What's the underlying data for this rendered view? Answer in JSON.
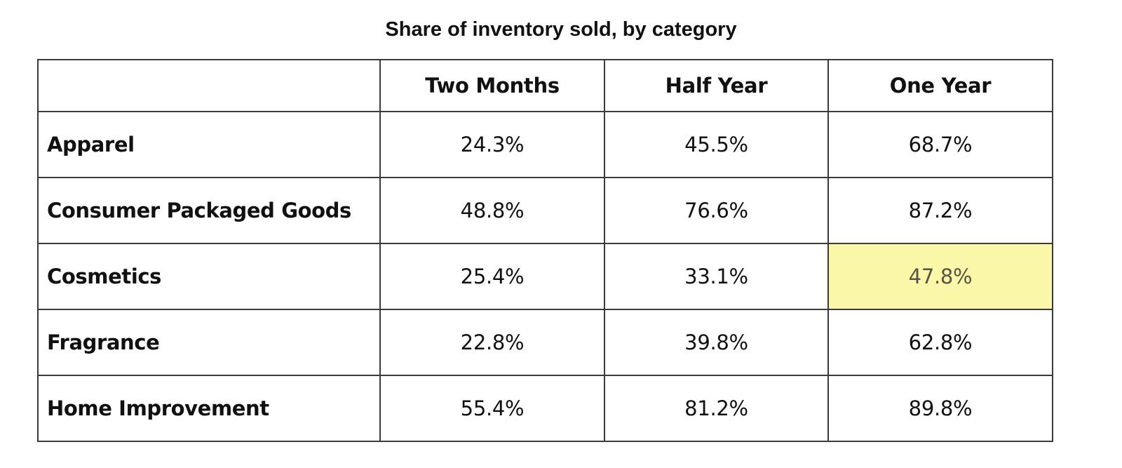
{
  "chart_data": {
    "type": "table",
    "title": "Share of inventory sold, by category",
    "corner": "",
    "columns": [
      "Two Months",
      "Half Year",
      "One Year"
    ],
    "rows": [
      {
        "label": "Apparel",
        "values": [
          "24.3%",
          "45.5%",
          "68.7%"
        ]
      },
      {
        "label": "Consumer Packaged Goods",
        "values": [
          "48.8%",
          "76.6%",
          "87.2%"
        ]
      },
      {
        "label": "Cosmetics",
        "values": [
          "25.4%",
          "33.1%",
          "47.8%"
        ]
      },
      {
        "label": "Fragrance",
        "values": [
          "22.8%",
          "39.8%",
          "62.8%"
        ]
      },
      {
        "label": "Home Improvement",
        "values": [
          "55.4%",
          "81.2%",
          "89.8%"
        ]
      }
    ],
    "highlight": {
      "row": 2,
      "col": 2,
      "color": "#fbf7a8"
    },
    "colors": {
      "border": "#3a3a3a",
      "text": "#111111",
      "highlight_text": "#555544"
    }
  }
}
